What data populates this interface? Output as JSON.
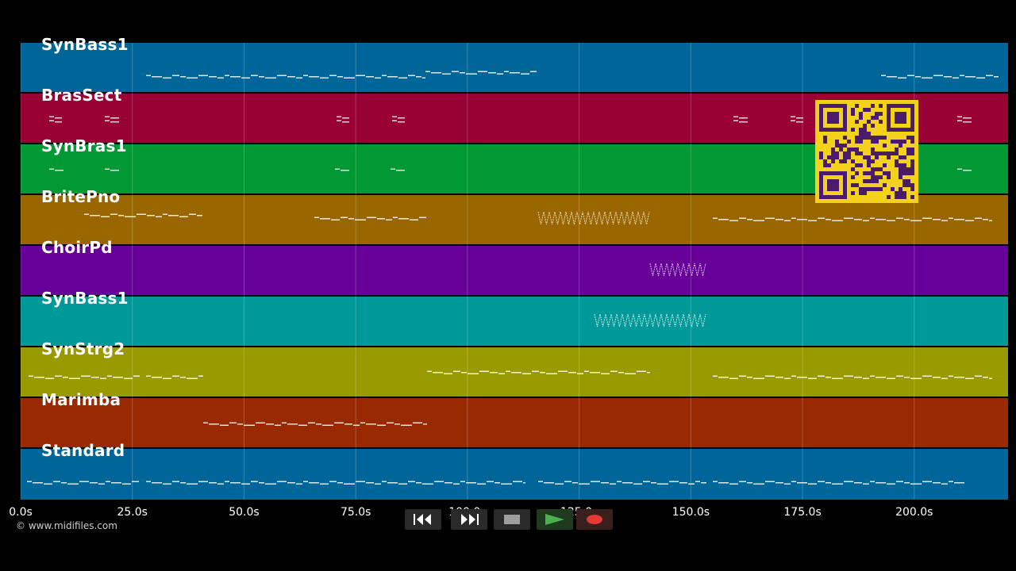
{
  "tracks": [
    {
      "name": "SynBass1",
      "color": "#006699"
    },
    {
      "name": "BrasSect",
      "color": "#990033"
    },
    {
      "name": "SynBras1",
      "color": "#009933"
    },
    {
      "name": "BritePno",
      "color": "#996600"
    },
    {
      "name": "ChoirPd",
      "color": "#660099"
    },
    {
      "name": "SynBass1",
      "color": "#009999"
    },
    {
      "name": "SynStrg2",
      "color": "#999900"
    },
    {
      "name": "Marimba",
      "color": "#992900"
    },
    {
      "name": "Standard",
      "color": "#006699"
    }
  ],
  "timeline": {
    "ticks": [
      "0.0s",
      "25.0s",
      "50.0s",
      "75.0s",
      "100.0s",
      "125.0s",
      "150.0s",
      "175.0s",
      "200.0s"
    ],
    "tick_seconds": [
      0,
      25,
      50,
      75,
      100,
      125,
      150,
      175,
      200
    ],
    "max_seconds": 221
  },
  "copyright": "© www.midifiles.com",
  "transport": [
    {
      "name": "rewind-button",
      "icon": "rewind-icon"
    },
    {
      "name": "fast-forward-button",
      "icon": "fast-forward-icon"
    },
    {
      "name": "stop-button",
      "icon": "stop-icon"
    },
    {
      "name": "play-button",
      "icon": "play-icon"
    },
    {
      "name": "record-button",
      "icon": "record-icon"
    }
  ],
  "colors": {
    "play": "#4caf50",
    "record": "#e53935",
    "qr_bg": "#f2d21b",
    "qr_fg": "#4a1a6b"
  }
}
